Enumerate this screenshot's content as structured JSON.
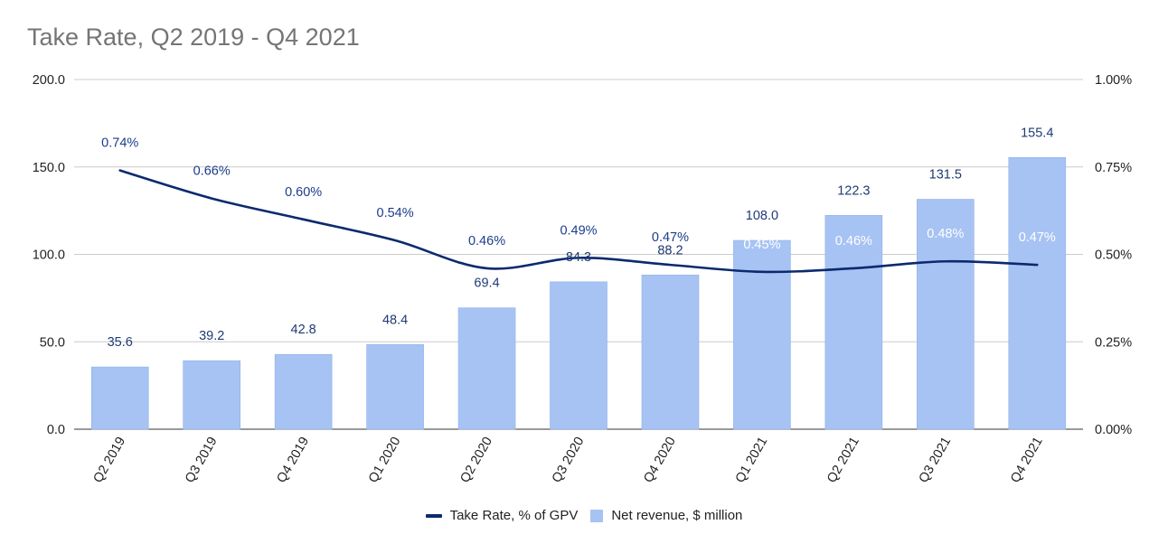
{
  "chart_data": {
    "type": "bar",
    "title": "Take Rate, Q2 2019 - Q4 2021",
    "categories": [
      "Q2 2019",
      "Q3 2019",
      "Q4 2019",
      "Q1 2020",
      "Q2 2020",
      "Q3 2020",
      "Q4 2020",
      "Q1 2021",
      "Q2 2021",
      "Q3 2021",
      "Q4 2021"
    ],
    "series": [
      {
        "name": "Net revenue, $ million",
        "type": "bar",
        "axis": "left",
        "values": [
          35.6,
          39.2,
          42.8,
          48.4,
          69.4,
          84.3,
          88.2,
          108.0,
          122.3,
          131.5,
          155.4
        ],
        "labels": [
          "35.6",
          "39.2",
          "42.8",
          "48.4",
          "69.4",
          "84.3",
          "88.2",
          "108.0",
          "122.3",
          "131.5",
          "155.4"
        ],
        "color": "#a7c3f3"
      },
      {
        "name": "Take Rate, % of GPV",
        "type": "line",
        "axis": "right",
        "values": [
          0.74,
          0.66,
          0.6,
          0.54,
          0.46,
          0.49,
          0.47,
          0.45,
          0.46,
          0.48,
          0.47
        ],
        "labels": [
          "0.74%",
          "0.66%",
          "0.60%",
          "0.54%",
          "0.46%",
          "0.49%",
          "0.47%",
          "0.45%",
          "0.46%",
          "0.48%",
          "0.47%"
        ],
        "color": "#0b2a6e"
      }
    ],
    "y_left": {
      "range": [
        0,
        200
      ],
      "ticks": [
        "0.0",
        "50.0",
        "100.0",
        "150.0",
        "200.0"
      ]
    },
    "y_right": {
      "range": [
        0,
        1.0
      ],
      "ticks": [
        "0.00%",
        "0.25%",
        "0.50%",
        "0.75%",
        "1.00%"
      ]
    },
    "grid": true,
    "legend_position": "bottom"
  }
}
